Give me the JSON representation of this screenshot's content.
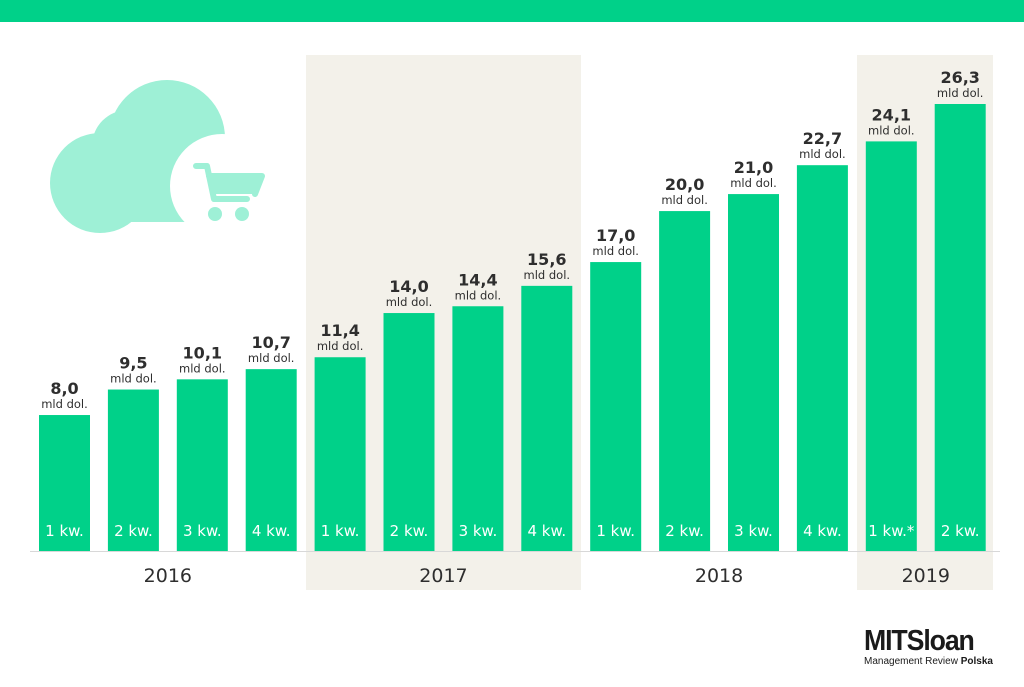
{
  "colors": {
    "accent": "#00d189",
    "band": "#f3f1ea",
    "icon": "#9ef0d6",
    "text": "#2e2e2e",
    "bar_label": "#ffffff"
  },
  "icon": "cloud-shopping-cart-icon",
  "logo": {
    "main": "MITSloan",
    "sub": "Management Review",
    "sub_bold": "Polska"
  },
  "chart_data": {
    "type": "bar",
    "unit_label": "mld dol.",
    "categories": [
      "1 kw.",
      "2 kw.",
      "3 kw.",
      "4 kw.",
      "1 kw.",
      "2 kw.",
      "3 kw.",
      "4 kw.",
      "1 kw.",
      "2 kw.",
      "3 kw.",
      "4 kw.",
      "1 kw.*",
      "2 kw."
    ],
    "values": [
      8.0,
      9.5,
      10.1,
      10.7,
      11.4,
      14.0,
      14.4,
      15.6,
      17.0,
      20.0,
      21.0,
      22.7,
      24.1,
      26.3
    ],
    "value_labels": [
      "8,0",
      "9,5",
      "10,1",
      "10,7",
      "11,4",
      "14,0",
      "14,4",
      "15,6",
      "17,0",
      "20,0",
      "21,0",
      "22,7",
      "24,1",
      "26,3"
    ],
    "groups": [
      {
        "label": "2016",
        "start": 0,
        "count": 4,
        "shaded": false
      },
      {
        "label": "2017",
        "start": 4,
        "count": 4,
        "shaded": true
      },
      {
        "label": "2018",
        "start": 8,
        "count": 4,
        "shaded": false
      },
      {
        "label": "2019",
        "start": 12,
        "count": 2,
        "shaded": true
      }
    ],
    "ylim": [
      0,
      26.3
    ],
    "grid": false
  }
}
